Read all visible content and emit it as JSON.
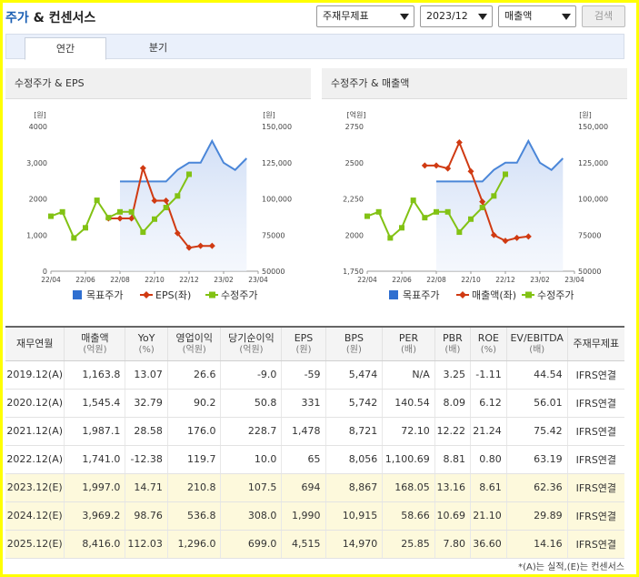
{
  "header": {
    "title_accent": "주가",
    "title_rest": " & 컨센서스",
    "select_type": "주재무제표",
    "select_period": "2023/12",
    "select_metric": "매출액",
    "search_label": "검색"
  },
  "tabs": [
    {
      "label": "연간",
      "active": true
    },
    {
      "label": "분기",
      "active": false
    }
  ],
  "charts": [
    {
      "title": "수정주가 & EPS",
      "left_unit": "[원]",
      "right_unit": "[원]",
      "left_ticks": [
        "0",
        "1,000",
        "2000",
        "3,000",
        "4000"
      ],
      "right_ticks": [
        "50000",
        "75000",
        "100,000",
        "125,000",
        "150,000"
      ],
      "legend": [
        "목표주가",
        "EPS(좌)",
        "수정주가"
      ]
    },
    {
      "title": "수정주가 & 매출액",
      "left_unit": "[억원]",
      "right_unit": "[원]",
      "left_ticks": [
        "1,750",
        "2000",
        "2,250",
        "2500",
        "2750"
      ],
      "right_ticks": [
        "50000",
        "75000",
        "100,000",
        "125,000",
        "150,000"
      ],
      "legend": [
        "목표주가",
        "매출액(좌)",
        "수정주가"
      ]
    }
  ],
  "chart_data": [
    {
      "type": "line",
      "title": "수정주가 & EPS",
      "x_labels": [
        "22/04",
        "22/06",
        "22/08",
        "22/10",
        "22/12",
        "23/02",
        "23/04"
      ],
      "left_ylim": [
        0,
        4000
      ],
      "right_ylim": [
        50000,
        150000
      ],
      "series": [
        {
          "name": "목표주가",
          "axis": "right",
          "kind": "area",
          "color": "#4a86d8",
          "points": [
            [
              6,
              112000
            ],
            [
              10,
              112000
            ],
            [
              11,
              120000
            ],
            [
              12,
              125000
            ],
            [
              13,
              125000
            ],
            [
              14,
              140000
            ],
            [
              15,
              125000
            ],
            [
              16,
              120000
            ],
            [
              17,
              128000
            ]
          ]
        },
        {
          "name": "EPS(좌)",
          "axis": "left",
          "kind": "line",
          "color": "#d03a12",
          "points": [
            [
              5,
              1460
            ],
            [
              6,
              1460
            ],
            [
              7,
              1460
            ],
            [
              8,
              2850
            ],
            [
              9,
              1950
            ],
            [
              10,
              1950
            ],
            [
              11,
              1050
            ],
            [
              12,
              650
            ],
            [
              13,
              700
            ],
            [
              14,
              700
            ]
          ]
        },
        {
          "name": "수정주가",
          "axis": "right",
          "kind": "line",
          "color": "#82c214",
          "points": [
            [
              0,
              88000
            ],
            [
              1,
              91000
            ],
            [
              2,
              73000
            ],
            [
              3,
              80000
            ],
            [
              4,
              99000
            ],
            [
              5,
              87000
            ],
            [
              6,
              91000
            ],
            [
              7,
              91000
            ],
            [
              8,
              77000
            ],
            [
              9,
              86000
            ],
            [
              10,
              94000
            ],
            [
              11,
              102000
            ],
            [
              12,
              117000
            ]
          ]
        }
      ]
    },
    {
      "type": "line",
      "title": "수정주가 & 매출액",
      "x_labels": [
        "22/04",
        "22/06",
        "22/08",
        "22/10",
        "22/12",
        "23/02",
        "23/04"
      ],
      "left_ylim": [
        1750,
        2750
      ],
      "right_ylim": [
        50000,
        150000
      ],
      "series": [
        {
          "name": "목표주가",
          "axis": "right",
          "kind": "area",
          "color": "#4a86d8",
          "points": [
            [
              6,
              112000
            ],
            [
              10,
              112000
            ],
            [
              11,
              120000
            ],
            [
              12,
              125000
            ],
            [
              13,
              125000
            ],
            [
              14,
              140000
            ],
            [
              15,
              125000
            ],
            [
              16,
              120000
            ],
            [
              17,
              128000
            ]
          ]
        },
        {
          "name": "매출액(좌)",
          "axis": "left",
          "kind": "line",
          "color": "#d03a12",
          "points": [
            [
              5,
              2480
            ],
            [
              6,
              2480
            ],
            [
              7,
              2460
            ],
            [
              8,
              2640
            ],
            [
              9,
              2440
            ],
            [
              10,
              2230
            ],
            [
              11,
              2000
            ],
            [
              12,
              1960
            ],
            [
              13,
              1980
            ],
            [
              14,
              1990
            ]
          ]
        },
        {
          "name": "수정주가",
          "axis": "right",
          "kind": "line",
          "color": "#82c214",
          "points": [
            [
              0,
              88000
            ],
            [
              1,
              91000
            ],
            [
              2,
              73000
            ],
            [
              3,
              80000
            ],
            [
              4,
              99000
            ],
            [
              5,
              87000
            ],
            [
              6,
              91000
            ],
            [
              7,
              91000
            ],
            [
              8,
              77000
            ],
            [
              9,
              86000
            ],
            [
              10,
              94000
            ],
            [
              11,
              102000
            ],
            [
              12,
              117000
            ]
          ]
        }
      ]
    }
  ],
  "table": {
    "headers": [
      {
        "label": "재무연월",
        "unit": ""
      },
      {
        "label": "매출액",
        "unit": "(억원)"
      },
      {
        "label": "YoY",
        "unit": "(%)"
      },
      {
        "label": "영업이익",
        "unit": "(억원)"
      },
      {
        "label": "당기순이익",
        "unit": "(억원)"
      },
      {
        "label": "EPS",
        "unit": "(원)"
      },
      {
        "label": "BPS",
        "unit": "(원)"
      },
      {
        "label": "PER",
        "unit": "(배)"
      },
      {
        "label": "PBR",
        "unit": "(배)"
      },
      {
        "label": "ROE",
        "unit": "(%)"
      },
      {
        "label": "EV/EBITDA",
        "unit": "(배)"
      },
      {
        "label": "주재무제표",
        "unit": ""
      }
    ],
    "rows": [
      {
        "estimate": false,
        "cells": [
          "2019.12(A)",
          "1,163.8",
          "13.07",
          "26.6",
          "-9.0",
          "-59",
          "5,474",
          "N/A",
          "3.25",
          "-1.11",
          "44.54",
          "IFRS연결"
        ]
      },
      {
        "estimate": false,
        "cells": [
          "2020.12(A)",
          "1,545.4",
          "32.79",
          "90.2",
          "50.8",
          "331",
          "5,742",
          "140.54",
          "8.09",
          "6.12",
          "56.01",
          "IFRS연결"
        ]
      },
      {
        "estimate": false,
        "cells": [
          "2021.12(A)",
          "1,987.1",
          "28.58",
          "176.0",
          "228.7",
          "1,478",
          "8,721",
          "72.10",
          "12.22",
          "21.24",
          "75.42",
          "IFRS연결"
        ]
      },
      {
        "estimate": false,
        "cells": [
          "2022.12(A)",
          "1,741.0",
          "-12.38",
          "119.7",
          "10.0",
          "65",
          "8,056",
          "1,100.69",
          "8.81",
          "0.80",
          "63.19",
          "IFRS연결"
        ]
      },
      {
        "estimate": true,
        "cells": [
          "2023.12(E)",
          "1,997.0",
          "14.71",
          "210.8",
          "107.5",
          "694",
          "8,867",
          "168.05",
          "13.16",
          "8.61",
          "62.36",
          "IFRS연결"
        ]
      },
      {
        "estimate": true,
        "cells": [
          "2024.12(E)",
          "3,969.2",
          "98.76",
          "536.8",
          "308.0",
          "1,990",
          "10,915",
          "58.66",
          "10.69",
          "21.10",
          "29.89",
          "IFRS연결"
        ]
      },
      {
        "estimate": true,
        "cells": [
          "2025.12(E)",
          "8,416.0",
          "112.03",
          "1,296.0",
          "699.0",
          "4,515",
          "14,970",
          "25.85",
          "7.80",
          "36.60",
          "14.16",
          "IFRS연결"
        ]
      }
    ]
  },
  "footnote": "*(A)는 실적,(E)는 컨센서스"
}
